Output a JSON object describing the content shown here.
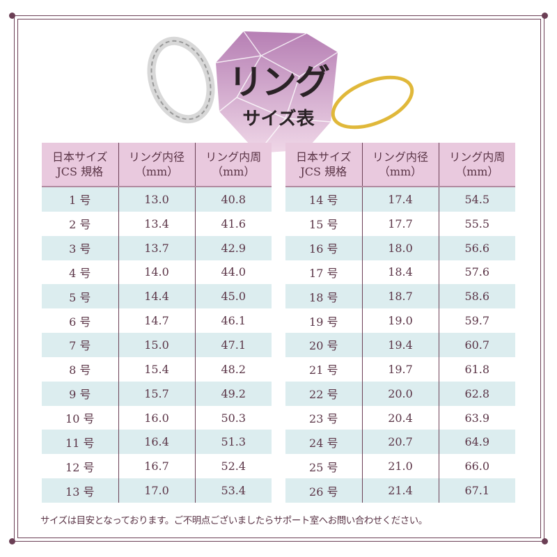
{
  "title": "リング",
  "subtitle": "サイズ表",
  "headers": [
    "日本サイズ\nJCS 規格",
    "リング内径\n（mm）",
    "リング内周\n（mm）"
  ],
  "left_rows": [
    [
      "1 号",
      "13.0",
      "40.8"
    ],
    [
      "2 号",
      "13.4",
      "41.6"
    ],
    [
      "3 号",
      "13.7",
      "42.9"
    ],
    [
      "4 号",
      "14.0",
      "44.0"
    ],
    [
      "5 号",
      "14.4",
      "45.0"
    ],
    [
      "6 号",
      "14.7",
      "46.1"
    ],
    [
      "7 号",
      "15.0",
      "47.1"
    ],
    [
      "8 号",
      "15.4",
      "48.2"
    ],
    [
      "9 号",
      "15.7",
      "49.2"
    ],
    [
      "10 号",
      "16.0",
      "50.3"
    ],
    [
      "11 号",
      "16.4",
      "51.3"
    ],
    [
      "12 号",
      "16.7",
      "52.4"
    ],
    [
      "13 号",
      "17.0",
      "53.4"
    ]
  ],
  "right_rows": [
    [
      "14 号",
      "17.4",
      "54.5"
    ],
    [
      "15 号",
      "17.7",
      "55.5"
    ],
    [
      "16 号",
      "18.0",
      "56.6"
    ],
    [
      "17 号",
      "18.4",
      "57.6"
    ],
    [
      "18 号",
      "18.7",
      "58.6"
    ],
    [
      "19 号",
      "19.0",
      "59.7"
    ],
    [
      "20 号",
      "19.4",
      "60.7"
    ],
    [
      "21 号",
      "19.7",
      "61.8"
    ],
    [
      "22 号",
      "20.0",
      "62.8"
    ],
    [
      "23 号",
      "20.4",
      "63.9"
    ],
    [
      "24 号",
      "20.7",
      "64.9"
    ],
    [
      "25 号",
      "21.0",
      "66.0"
    ],
    [
      "26 号",
      "21.4",
      "67.1"
    ]
  ],
  "note": "サイズは目安となっております。ご不明点ございましたらサポート室へお問い合わせください。",
  "colors": {
    "frame": "#6b3f55",
    "header_bg": "#e9c9de",
    "row_alt_bg": "#dcedef",
    "text": "#5a3446"
  }
}
